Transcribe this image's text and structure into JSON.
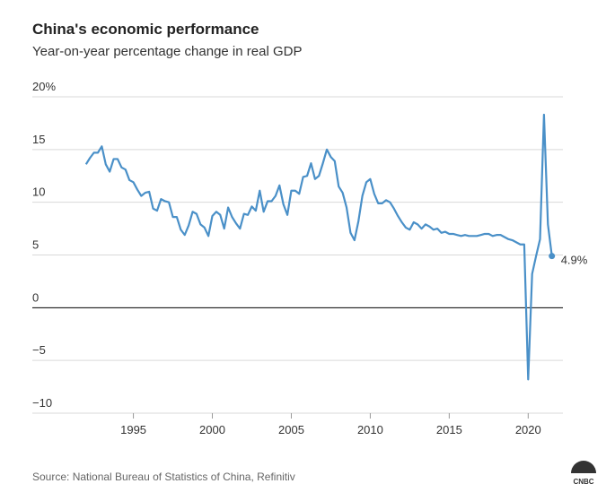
{
  "chart_data": {
    "type": "line",
    "title": "China's economic performance",
    "subtitle": "Year-on-year percentage change in real GDP",
    "source": "Source: National Bureau of Statistics of China, Refinitiv",
    "logo": "CNBC",
    "x": [
      1992,
      1992.25,
      1992.5,
      1992.75,
      1993,
      1993.25,
      1993.5,
      1993.75,
      1994,
      1994.25,
      1994.5,
      1994.75,
      1995,
      1995.25,
      1995.5,
      1995.75,
      1996,
      1996.25,
      1996.5,
      1996.75,
      1997,
      1997.25,
      1997.5,
      1997.75,
      1998,
      1998.25,
      1998.5,
      1998.75,
      1999,
      1999.25,
      1999.5,
      1999.75,
      2000,
      2000.25,
      2000.5,
      2000.75,
      2001,
      2001.25,
      2001.5,
      2001.75,
      2002,
      2002.25,
      2002.5,
      2002.75,
      2003,
      2003.25,
      2003.5,
      2003.75,
      2004,
      2004.25,
      2004.5,
      2004.75,
      2005,
      2005.25,
      2005.5,
      2005.75,
      2006,
      2006.25,
      2006.5,
      2006.75,
      2007,
      2007.25,
      2007.5,
      2007.75,
      2008,
      2008.25,
      2008.5,
      2008.75,
      2009,
      2009.25,
      2009.5,
      2009.75,
      2010,
      2010.25,
      2010.5,
      2010.75,
      2011,
      2011.25,
      2011.5,
      2011.75,
      2012,
      2012.25,
      2012.5,
      2012.75,
      2013,
      2013.25,
      2013.5,
      2013.75,
      2014,
      2014.25,
      2014.5,
      2014.75,
      2015,
      2015.25,
      2015.5,
      2015.75,
      2016,
      2016.25,
      2016.5,
      2016.75,
      2017,
      2017.25,
      2017.5,
      2017.75,
      2018,
      2018.25,
      2018.5,
      2018.75,
      2019,
      2019.25,
      2019.5,
      2019.75,
      2020,
      2020.25,
      2020.5,
      2020.75,
      2021,
      2021.25,
      2021.5
    ],
    "series": [
      {
        "color": "#4a90c8",
        "values": [
          13.6,
          14.2,
          14.7,
          14.7,
          15.3,
          13.6,
          12.9,
          14.1,
          14.1,
          13.3,
          13.1,
          12.1,
          11.9,
          11.2,
          10.6,
          10.9,
          11.0,
          9.4,
          9.2,
          10.3,
          10.1,
          10.0,
          8.6,
          8.6,
          7.4,
          6.9,
          7.8,
          9.1,
          8.9,
          7.9,
          7.6,
          6.8,
          8.7,
          9.1,
          8.8,
          7.5,
          9.5,
          8.6,
          8.0,
          7.5,
          8.9,
          8.8,
          9.6,
          9.2,
          11.1,
          9.1,
          10.1,
          10.1,
          10.6,
          11.6,
          9.8,
          8.8,
          11.1,
          11.1,
          10.8,
          12.4,
          12.5,
          13.7,
          12.2,
          12.5,
          13.7,
          15.0,
          14.3,
          13.9,
          11.5,
          10.9,
          9.5,
          7.1,
          6.4,
          8.2,
          10.6,
          11.9,
          12.2,
          10.8,
          9.9,
          9.9,
          10.2,
          10.0,
          9.4,
          8.7,
          8.1,
          7.6,
          7.4,
          8.1,
          7.9,
          7.5,
          7.9,
          7.7,
          7.4,
          7.5,
          7.1,
          7.2,
          7.0,
          7.0,
          6.9,
          6.8,
          6.9,
          6.8,
          6.8,
          6.8,
          6.9,
          7.0,
          7.0,
          6.8,
          6.9,
          6.9,
          6.7,
          6.5,
          6.4,
          6.2,
          6.0,
          6.0,
          -6.8,
          3.2,
          4.9,
          6.5,
          18.3,
          7.9,
          4.9
        ],
        "value_labels": [
          null,
          null,
          null,
          null,
          null,
          null,
          null,
          null,
          null,
          null,
          null,
          null,
          null,
          null,
          null,
          null,
          null,
          null,
          null,
          null,
          null,
          null,
          null,
          null,
          null,
          null,
          null,
          null,
          null,
          null,
          null,
          null,
          null,
          null,
          null,
          null,
          null,
          null,
          null,
          null,
          null,
          null,
          null,
          null,
          null,
          null,
          null,
          null,
          null,
          null,
          null,
          null,
          null,
          null,
          null,
          null,
          null,
          null,
          null,
          null,
          null,
          null,
          null,
          null,
          null,
          null,
          null,
          null,
          null,
          null,
          null,
          null,
          null,
          null,
          null,
          null,
          null,
          null,
          null,
          null,
          null,
          null,
          null,
          null,
          null,
          null,
          null,
          null,
          null,
          null,
          null,
          null,
          null,
          null,
          null,
          null,
          null,
          null,
          null,
          null,
          null,
          null,
          null,
          null,
          null,
          null,
          null,
          null,
          null,
          null,
          null,
          null,
          null,
          null,
          null,
          null,
          null,
          null,
          "4.9%"
        ]
      }
    ],
    "xlim": [
      1988.6,
      2022.2
    ],
    "ylim": [
      -10,
      20
    ],
    "xticks": [
      1995,
      2000,
      2005,
      2010,
      2015,
      2020
    ],
    "yticks": [
      {
        "value": -10,
        "label": "−10"
      },
      {
        "value": -5,
        "label": "−5"
      },
      0,
      5,
      10,
      15,
      {
        "value": 20,
        "label": "20%"
      }
    ],
    "grid": true
  }
}
